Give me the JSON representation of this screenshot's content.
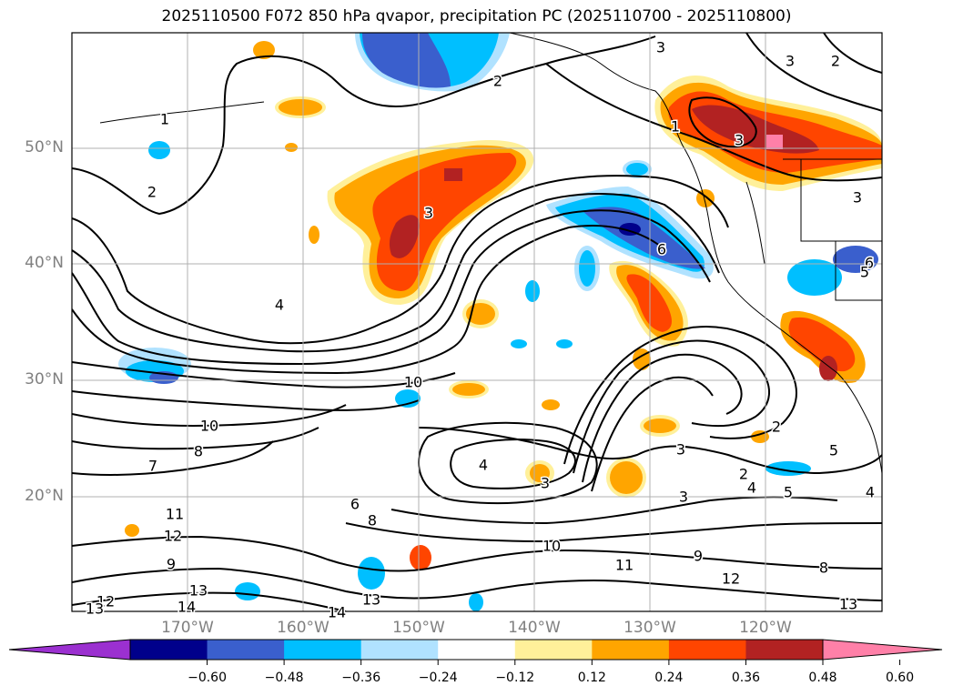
{
  "title": "2025110500 F072 850 hPa qvapor, precipitation PC (2025110700 - 2025110800)",
  "lat_labels": [
    "50°N",
    "40°N",
    "30°N",
    "20°N"
  ],
  "lon_labels": [
    "170°W",
    "160°W",
    "150°W",
    "140°W",
    "130°W",
    "120°W"
  ],
  "colorbar": {
    "colors": [
      "#9b30d0",
      "#00008b",
      "#3a5fcd",
      "#00bfff",
      "#b0e2ff",
      "#ffffff",
      "#fff09a",
      "#ffa500",
      "#ff4500",
      "#b22222",
      "#ff80a8"
    ],
    "ticks": [
      "−0.60",
      "−0.48",
      "−0.36",
      "−0.24",
      "−0.12",
      "0.12",
      "0.24",
      "0.36",
      "0.48",
      "0.60"
    ]
  },
  "contour_labels": [
    "3",
    "2",
    "2",
    "3",
    "1",
    "3",
    "2",
    "1",
    "3",
    "3",
    "6",
    "6",
    "4",
    "10",
    "10",
    "8",
    "7",
    "4",
    "3",
    "2",
    "5",
    "4",
    "5",
    "4",
    "3",
    "2",
    "11",
    "12",
    "9",
    "13",
    "12",
    "14",
    "13",
    "13",
    "14",
    "10",
    "11",
    "9",
    "12",
    "8",
    "13",
    "8",
    "6",
    "5",
    "3"
  ]
}
